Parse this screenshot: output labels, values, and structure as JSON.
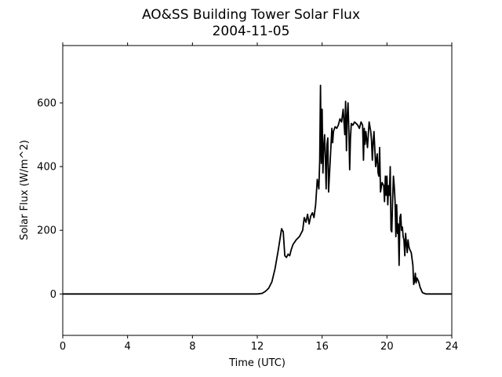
{
  "chart_data": {
    "type": "line",
    "title": "AO&SS Building Tower Solar Flux",
    "subtitle": "2004-11-05",
    "xlabel": "Time (UTC)",
    "ylabel": "Solar Flux (W/m^2)",
    "xlim": [
      0,
      24
    ],
    "ylim": [
      -130,
      780
    ],
    "xticks": [
      0,
      4,
      8,
      12,
      16,
      20,
      24
    ],
    "yticks": [
      0,
      200,
      400,
      600
    ],
    "grid": false,
    "legend": "none",
    "line_color": "#000000",
    "series": [
      {
        "x": [
          0,
          12.0,
          12.3,
          12.5,
          12.7,
          12.9,
          13.1,
          13.3,
          13.5,
          13.6,
          13.7,
          13.8,
          13.9,
          14.0,
          14.1,
          14.2,
          14.4,
          14.6,
          14.8,
          14.9,
          15.0,
          15.1,
          15.2,
          15.3,
          15.4,
          15.5,
          15.6,
          15.7,
          15.8,
          15.85,
          15.9,
          15.95,
          16.0,
          16.05,
          16.1,
          16.15,
          16.2,
          16.25,
          16.3,
          16.35,
          16.4,
          16.5,
          16.6,
          16.65,
          16.7,
          16.8,
          16.9,
          17.0,
          17.1,
          17.2,
          17.3,
          17.4,
          17.45,
          17.5,
          17.55,
          17.6,
          17.65,
          17.7,
          17.75,
          17.8,
          17.9,
          18.0,
          18.1,
          18.2,
          18.3,
          18.4,
          18.5,
          18.55,
          18.6,
          18.65,
          18.7,
          18.8,
          18.9,
          19.0,
          19.05,
          19.1,
          19.15,
          19.2,
          19.3,
          19.4,
          19.45,
          19.5,
          19.55,
          19.6,
          19.7,
          19.8,
          19.85,
          19.9,
          19.95,
          20.0,
          20.05,
          20.1,
          20.15,
          20.2,
          20.25,
          20.3,
          20.35,
          20.4,
          20.45,
          20.5,
          20.55,
          20.6,
          20.65,
          20.7,
          20.75,
          20.8,
          20.85,
          20.9,
          20.95,
          21.0,
          21.05,
          21.1,
          21.15,
          21.2,
          21.25,
          21.3,
          21.35,
          21.4,
          21.5,
          21.6,
          21.65,
          21.7,
          21.75,
          21.8,
          21.85,
          21.9,
          21.95,
          22.0,
          22.05,
          22.1,
          22.15,
          22.2,
          22.3,
          22.4,
          22.5,
          22.6,
          22.7,
          22.8,
          23.0,
          23.5,
          24
        ],
        "y": [
          0,
          0,
          2,
          8,
          18,
          38,
          80,
          140,
          205,
          195,
          120,
          115,
          125,
          120,
          140,
          155,
          170,
          180,
          200,
          240,
          225,
          250,
          220,
          245,
          255,
          240,
          280,
          360,
          330,
          420,
          655,
          410,
          580,
          380,
          460,
          500,
          430,
          330,
          470,
          490,
          320,
          420,
          520,
          475,
          510,
          525,
          520,
          530,
          550,
          540,
          580,
          500,
          605,
          450,
          560,
          600,
          510,
          390,
          490,
          535,
          530,
          540,
          535,
          530,
          520,
          540,
          530,
          420,
          520,
          470,
          510,
          460,
          540,
          510,
          480,
          420,
          480,
          510,
          400,
          440,
          380,
          370,
          460,
          320,
          350,
          340,
          290,
          370,
          310,
          370,
          280,
          340,
          310,
          400,
          200,
          195,
          300,
          370,
          340,
          290,
          180,
          280,
          190,
          220,
          90,
          240,
          250,
          200,
          210,
          180,
          170,
          120,
          190,
          160,
          130,
          170,
          150,
          140,
          130,
          90,
          30,
          40,
          65,
          35,
          50,
          45,
          40,
          30,
          20,
          15,
          8,
          4,
          2,
          0,
          0,
          0,
          0,
          0,
          0,
          0,
          0
        ]
      }
    ]
  }
}
